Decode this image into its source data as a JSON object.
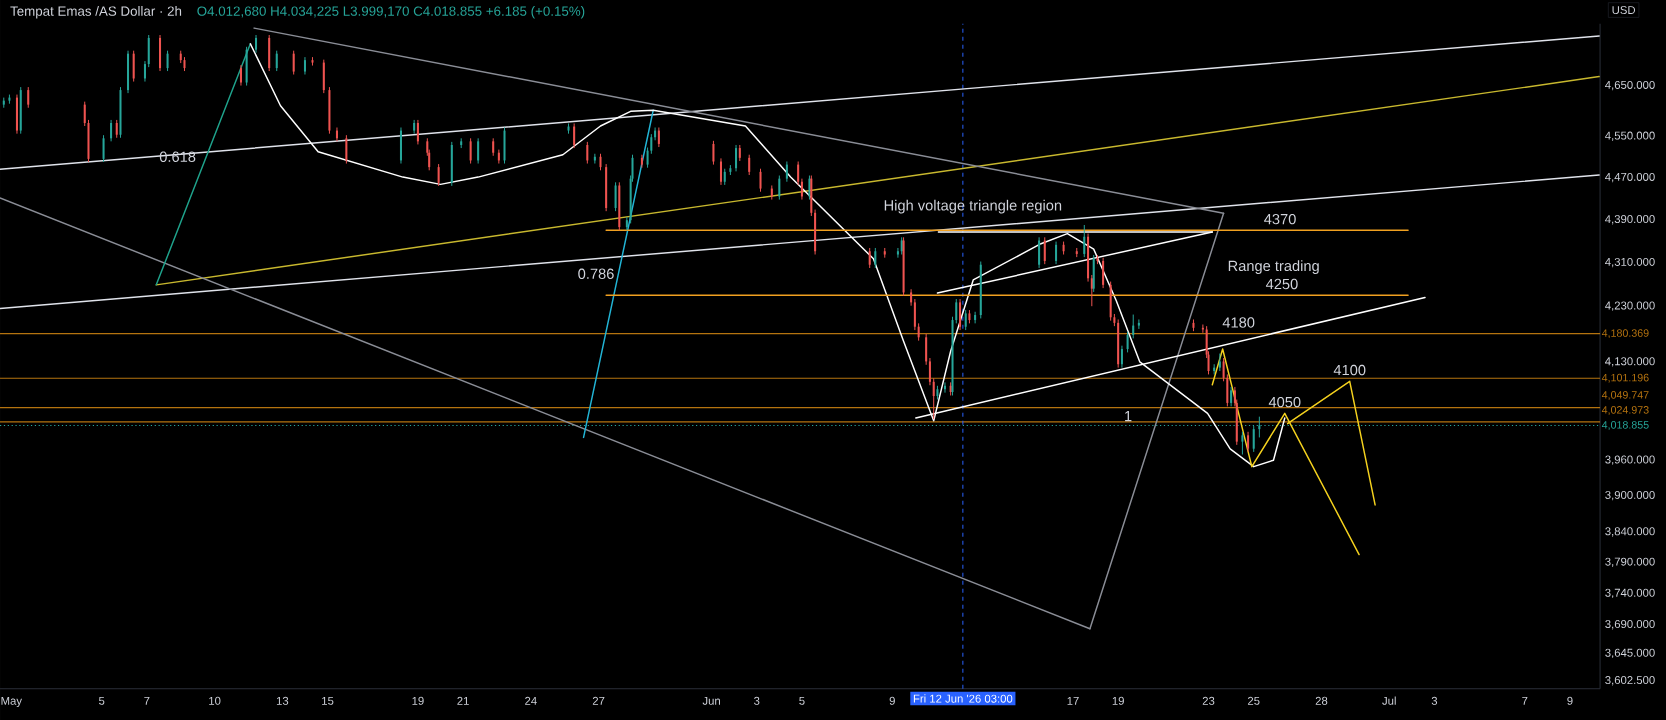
{
  "chart_data": {
    "type": "candlestick",
    "title": "Tempat Emas /AS Dollar · 2h",
    "subtitle": "O4.012,680 H4.034,225 L3.999,170 C4.018.855 +6.185 (+0.15%)",
    "log": "y",
    "xlim": [
      "2026-04-30T12:00",
      "2026-07-10T08:00"
    ],
    "ylim": [
      3590,
      4775
    ],
    "xticks": [
      {
        "value": "2026-05-01",
        "label": "May"
      },
      {
        "value": "2026-05-05",
        "label": "5"
      },
      {
        "value": "2026-05-07",
        "label": "7"
      },
      {
        "value": "2026-05-10",
        "label": "10"
      },
      {
        "value": "2026-05-13",
        "label": "13"
      },
      {
        "value": "2026-05-15",
        "label": "15"
      },
      {
        "value": "2026-05-19",
        "label": "19"
      },
      {
        "value": "2026-05-21",
        "label": "21"
      },
      {
        "value": "2026-05-24",
        "label": "24"
      },
      {
        "value": "2026-05-27",
        "label": "27"
      },
      {
        "value": "2026-06-01",
        "label": "Jun"
      },
      {
        "value": "2026-06-03",
        "label": "3"
      },
      {
        "value": "2026-06-05",
        "label": "5"
      },
      {
        "value": "2026-06-09",
        "label": "9"
      },
      {
        "value": "2026-06-17",
        "label": "17"
      },
      {
        "value": "2026-06-19",
        "label": "19"
      },
      {
        "value": "2026-06-23",
        "label": "23"
      },
      {
        "value": "2026-06-25",
        "label": "25"
      },
      {
        "value": "2026-06-28",
        "label": "28"
      },
      {
        "value": "2026-07-01",
        "label": "Jul"
      },
      {
        "value": "2026-07-03",
        "label": "3"
      },
      {
        "value": "2026-07-07",
        "label": "7"
      },
      {
        "value": "2026-07-09",
        "label": "9"
      }
    ],
    "yticks": [
      {
        "value": 4650,
        "label": "4,650.000"
      },
      {
        "value": 4550,
        "label": "4,550.000"
      },
      {
        "value": 4470,
        "label": "4,470.000"
      },
      {
        "value": 4390,
        "label": "4,390.000"
      },
      {
        "value": 4310,
        "label": "4,310.000"
      },
      {
        "value": 4230,
        "label": "4,230.000"
      },
      {
        "value": 4130,
        "label": "4,130.000"
      },
      {
        "value": 3960,
        "label": "3,960.000"
      },
      {
        "value": 3900,
        "label": "3,900.000"
      },
      {
        "value": 3840,
        "label": "3,840.000"
      },
      {
        "value": 3790,
        "label": "3,790.000"
      },
      {
        "value": 3740,
        "label": "3,740.000"
      },
      {
        "value": 3690,
        "label": "3,690.000"
      },
      {
        "value": 3645,
        "label": "3,645.000"
      },
      {
        "value": 3602.5,
        "label": "3,602.500"
      }
    ],
    "ref_lines": [
      {
        "axis": "y",
        "value": 4180.369,
        "label": "4,180.369",
        "color": "#b5730f"
      },
      {
        "axis": "y",
        "value": 4101.196,
        "label": "4,101.196",
        "color": "#b5730f"
      },
      {
        "axis": "y",
        "value": 4049.747,
        "label": "4,049.747",
        "color": "#b5730f"
      },
      {
        "axis": "y",
        "value": 4024.973,
        "label": "4,024.973",
        "color": "#b5730f"
      },
      {
        "axis": "y",
        "value": 4018.855,
        "label": "4,018.855",
        "color": "#26a69a",
        "line_style": "dotted"
      },
      {
        "axis": "x",
        "value": "2026-06-12T03:00",
        "label": "Fri 12 Jun '26  03:00",
        "color": "#2962ff",
        "line_style": "dashed"
      }
    ],
    "annotations": [
      {
        "text": "4370",
        "x": "2026-06-26T04:00",
        "y": 4370
      },
      {
        "text": "4250",
        "x": "2026-06-26T06:00",
        "y": 4250
      },
      {
        "text": "4180",
        "x": "2026-06-24T08:00",
        "y": 4180.369
      },
      {
        "text": "4100",
        "x": "2026-06-29T06:00",
        "y": 4096
      },
      {
        "text": "4050",
        "x": "2026-06-26T09:00",
        "y": 4040
      },
      "High voltage triangle region",
      "Range trading",
      "0.618",
      "0.786",
      "1",
      "USD"
    ],
    "series": [
      {
        "type": "line",
        "color": "#e0e3eb",
        "x": [
          "2026-04-30T12:00",
          "2026-07-10T07:00"
        ],
        "values": [
          4486,
          4750
        ]
      },
      {
        "type": "line",
        "color": "#e0e3eb",
        "x": [
          "2026-04-30T12:00",
          "2026-07-10T07:00"
        ],
        "values": [
          4226,
          4475
        ]
      },
      {
        "type": "line",
        "color": "#c8b82e",
        "x": [
          "2026-05-07T10:00",
          "2026-07-10T07:00"
        ],
        "values": [
          4269,
          4668
        ]
      },
      {
        "type": "line",
        "color": "#8a8d96",
        "x": [
          "2026-05-11T18:00",
          "2026-06-23T16:00"
        ],
        "values": [
          4766,
          4402
        ]
      },
      {
        "type": "line",
        "color": "#8a8d96",
        "x": [
          "2026-04-30T12:00",
          "2026-06-17T18:00"
        ],
        "values": [
          4431,
          3684
        ]
      },
      {
        "type": "line",
        "color": "#8a8d96",
        "x": [
          "2026-06-17T18:00",
          "2026-06-23T16:00"
        ],
        "values": [
          3684,
          4402
        ]
      },
      {
        "type": "line",
        "color": "#1fa38c",
        "x": [
          "2026-05-07T10:00",
          "2026-05-11T14:00"
        ],
        "values": [
          4269,
          4734
        ]
      },
      {
        "type": "line",
        "color": "#22b5d6",
        "x": [
          "2026-05-26T08:00",
          "2026-05-29T10:00"
        ],
        "values": [
          3999,
          4601
        ]
      },
      {
        "type": "line",
        "color": "#ffffff",
        "x": [
          "2026-05-11T14:00",
          "2026-05-12T22:00",
          "2026-05-14T14:00",
          "2026-05-18T08:00",
          "2026-05-20T00:00",
          "2026-05-21T16:00",
          "2026-05-25T10:00",
          "2026-05-27T02:00",
          "2026-05-28T10:00",
          "2026-05-29T10:00",
          "2026-06-02T12:00",
          "2026-06-04T12:00",
          "2026-06-08T04:00",
          "2026-06-09T12:00",
          "2026-06-10T20:00",
          "2026-06-11T14:00",
          "2026-06-12T14:00",
          "2026-06-15T14:00",
          "2026-06-16T18:00",
          "2026-06-17T22:00",
          "2026-06-18T22:00",
          "2026-06-19T23:00",
          "2026-06-22T23:00",
          "2026-06-23T23:00",
          "2026-06-25T00:00",
          "2026-06-25T21:00",
          "2026-06-26T09:00"
        ],
        "values": [
          4734,
          4610,
          4520,
          4471,
          4457,
          4471,
          4514,
          4570,
          4599,
          4601,
          4570,
          4471,
          4317,
          4167,
          4027,
          4149,
          4278,
          4345,
          4364,
          4335,
          4240,
          4130,
          4040,
          3979,
          3949,
          3960,
          4032
        ]
      },
      {
        "type": "line",
        "color": "#ffffff",
        "x": [
          "2026-06-10T01:00",
          "2026-07-02T14:00"
        ],
        "values": [
          4032,
          4246
        ]
      },
      {
        "type": "line",
        "color": "#ffffff",
        "x": [
          "2026-06-11T00:00",
          "2026-06-23T04:00"
        ],
        "values": [
          4254,
          4367
        ]
      },
      {
        "type": "line",
        "color": "#ffffff",
        "x": [
          "2026-06-11T01:00",
          "2026-06-23T04:00"
        ],
        "values": [
          4367,
          4367
        ]
      },
      {
        "type": "line",
        "color": "#f0a020",
        "x": [
          "2026-05-27T08:00",
          "2026-07-01T20:00"
        ],
        "values": [
          4370,
          4370
        ]
      },
      {
        "type": "line",
        "color": "#f0a020",
        "x": [
          "2026-05-27T08:00",
          "2026-07-01T20:00"
        ],
        "values": [
          4250,
          4250
        ]
      },
      {
        "type": "line",
        "color": "#f5d21e",
        "x": [
          "2026-06-23T04:00",
          "2026-06-23T15:00",
          "2026-06-24T22:00",
          "2026-06-26T09:00",
          "2026-06-29T16:00"
        ],
        "values": [
          4090,
          4153,
          3949,
          4040,
          3803
        ]
      },
      {
        "type": "line",
        "color": "#f5d21e",
        "x": [
          "2026-06-26T12:00",
          "2026-06-29T06:00",
          "2026-06-30T09:00"
        ],
        "values": [
          4022,
          4096,
          3885
        ]
      },
      {
        "type": "candlestick",
        "x": [
          "2026-04-30T16:00",
          "2026-04-30T22:00",
          "2026-05-01T06:00",
          "2026-05-01T10:00",
          "2026-05-01T18:00",
          "2026-05-04T06:00",
          "2026-05-04T10:00",
          "2026-05-05T02:00",
          "2026-05-05T10:00",
          "2026-05-05T16:00",
          "2026-05-05T20:00",
          "2026-05-06T04:00",
          "2026-05-06T10:00",
          "2026-05-06T22:00",
          "2026-05-07T02:00",
          "2026-05-07T14:00",
          "2026-05-07T22:00",
          "2026-05-08T12:00",
          "2026-05-08T16:00",
          "2026-05-11T04:00",
          "2026-05-11T10:00",
          "2026-05-11T20:00",
          "2026-05-12T10:00",
          "2026-05-12T18:00",
          "2026-05-13T12:00",
          "2026-05-14T00:00",
          "2026-05-14T08:00",
          "2026-05-14T20:00",
          "2026-05-15T02:00",
          "2026-05-15T10:00",
          "2026-05-15T20:00",
          "2026-05-18T06:00",
          "2026-05-18T20:00",
          "2026-05-19T00:00",
          "2026-05-19T10:00",
          "2026-05-19T12:00",
          "2026-05-19T22:00",
          "2026-05-20T12:00",
          "2026-05-20T22:00",
          "2026-05-21T08:00",
          "2026-05-21T16:00",
          "2026-05-22T08:00",
          "2026-05-22T14:00",
          "2026-05-22T20:00",
          "2026-05-25T16:00",
          "2026-05-25T22:00",
          "2026-05-26T12:00",
          "2026-05-26T20:00",
          "2026-05-27T02:00",
          "2026-05-27T08:00",
          "2026-05-27T18:00",
          "2026-05-27T22:00",
          "2026-05-28T06:00",
          "2026-05-28T10:00",
          "2026-05-28T12:00",
          "2026-05-28T22:00",
          "2026-05-29T04:00",
          "2026-05-29T08:00",
          "2026-05-29T12:00",
          "2026-05-29T16:00",
          "2026-06-01T02:00",
          "2026-06-01T10:00",
          "2026-06-01T14:00",
          "2026-06-01T20:00",
          "2026-06-02T02:00",
          "2026-06-02T06:00",
          "2026-06-02T16:00",
          "2026-06-03T04:00",
          "2026-06-03T16:00",
          "2026-06-04T00:00",
          "2026-06-04T08:00",
          "2026-06-04T20:00",
          "2026-06-05T00:00",
          "2026-06-05T08:00",
          "2026-06-05T10:00",
          "2026-06-05T14:00",
          "2026-06-08T00:00",
          "2026-06-08T06:00",
          "2026-06-08T16:00",
          "2026-06-09T06:00",
          "2026-06-09T10:00",
          "2026-06-09T12:00",
          "2026-06-09T20:00",
          "2026-06-10T00:00",
          "2026-06-10T04:00",
          "2026-06-10T12:00",
          "2026-06-10T16:00",
          "2026-06-10T20:00",
          "2026-06-11T00:00",
          "2026-06-11T08:00",
          "2026-06-11T14:00",
          "2026-06-11T16:00",
          "2026-06-11T20:00",
          "2026-06-12T00:00",
          "2026-06-12T06:00",
          "2026-06-12T10:00",
          "2026-06-12T16:00",
          "2026-06-12T22:00",
          "2026-06-15T12:00",
          "2026-06-15T18:00",
          "2026-06-16T06:00",
          "2026-06-16T14:00",
          "2026-06-17T04:00",
          "2026-06-17T12:00",
          "2026-06-17T16:00",
          "2026-06-17T20:00",
          "2026-06-17T22:00",
          "2026-06-18T02:00",
          "2026-06-18T08:00",
          "2026-06-18T16:00",
          "2026-06-18T20:00",
          "2026-06-19T00:00",
          "2026-06-19T04:00",
          "2026-06-19T10:00",
          "2026-06-19T16:00",
          "2026-06-19T22:00",
          "2026-06-22T08:00",
          "2026-06-22T18:00",
          "2026-06-22T22:00",
          "2026-06-23T00:00",
          "2026-06-23T06:00",
          "2026-06-23T12:00",
          "2026-06-23T16:00",
          "2026-06-23T20:00",
          "2026-06-24T00:00",
          "2026-06-24T04:00",
          "2026-06-24T06:00",
          "2026-06-24T12:00",
          "2026-06-24T18:00",
          "2026-06-25T00:00",
          "2026-06-25T06:00"
        ],
        "ohlc": [
          [
            4612,
            4626,
            4606,
            4620
          ],
          [
            4620,
            4632,
            4614,
            4626
          ],
          [
            4626,
            4632,
            4555,
            4561
          ],
          [
            4561,
            4647,
            4555,
            4641
          ],
          [
            4641,
            4647,
            4606,
            4612
          ],
          [
            4612,
            4618,
            4570,
            4576
          ],
          [
            4576,
            4582,
            4500,
            4506
          ],
          [
            4506,
            4552,
            4500,
            4546
          ],
          [
            4546,
            4582,
            4540,
            4576
          ],
          [
            4576,
            4582,
            4547,
            4553
          ],
          [
            4553,
            4647,
            4547,
            4641
          ],
          [
            4641,
            4720,
            4635,
            4714
          ],
          [
            4714,
            4720,
            4658,
            4664
          ],
          [
            4664,
            4699,
            4658,
            4693
          ],
          [
            4693,
            4752,
            4687,
            4746
          ],
          [
            4746,
            4752,
            4679,
            4685
          ],
          [
            4685,
            4720,
            4679,
            4714
          ],
          [
            4714,
            4720,
            4695,
            4701
          ],
          [
            4701,
            4707,
            4679,
            4685
          ],
          [
            4685,
            4691,
            4650,
            4656
          ],
          [
            4656,
            4728,
            4650,
            4722
          ],
          [
            4722,
            4752,
            4716,
            4746
          ],
          [
            4746,
            4752,
            4679,
            4685
          ],
          [
            4685,
            4720,
            4679,
            4714
          ],
          [
            4714,
            4720,
            4672,
            4678
          ],
          [
            4678,
            4707,
            4672,
            4701
          ],
          [
            4701,
            4707,
            4690,
            4696
          ],
          [
            4696,
            4702,
            4635,
            4641
          ],
          [
            4641,
            4647,
            4555,
            4561
          ],
          [
            4561,
            4567,
            4540,
            4546
          ],
          [
            4546,
            4552,
            4497,
            4503
          ],
          [
            4503,
            4567,
            4497,
            4561
          ],
          [
            4561,
            4582,
            4555,
            4576
          ],
          [
            4576,
            4582,
            4534,
            4540
          ],
          [
            4540,
            4546,
            4512,
            4518
          ],
          [
            4518,
            4524,
            4484,
            4490
          ],
          [
            4490,
            4496,
            4454,
            4460
          ],
          [
            4460,
            4539,
            4454,
            4533
          ],
          [
            4533,
            4546,
            4527,
            4540
          ],
          [
            4540,
            4546,
            4497,
            4503
          ],
          [
            4503,
            4546,
            4497,
            4540
          ],
          [
            4540,
            4546,
            4512,
            4518
          ],
          [
            4518,
            4524,
            4497,
            4503
          ],
          [
            4503,
            4567,
            4497,
            4561
          ],
          [
            4561,
            4575,
            4555,
            4569
          ],
          [
            4569,
            4575,
            4527,
            4533
          ],
          [
            4533,
            4539,
            4497,
            4503
          ],
          [
            4503,
            4516,
            4497,
            4510
          ],
          [
            4510,
            4516,
            4484,
            4490
          ],
          [
            4490,
            4496,
            4406,
            4412
          ],
          [
            4412,
            4461,
            4406,
            4455
          ],
          [
            4455,
            4461,
            4370,
            4376
          ],
          [
            4376,
            4395,
            4370,
            4389
          ],
          [
            4389,
            4474,
            4383,
            4468
          ],
          [
            4468,
            4514,
            4462,
            4508
          ],
          [
            4508,
            4514,
            4489,
            4495
          ],
          [
            4495,
            4528,
            4489,
            4522
          ],
          [
            4522,
            4554,
            4516,
            4548
          ],
          [
            4548,
            4567,
            4542,
            4561
          ],
          [
            4561,
            4567,
            4529,
            4535
          ],
          [
            4535,
            4541,
            4495,
            4501
          ],
          [
            4501,
            4507,
            4456,
            4462
          ],
          [
            4462,
            4487,
            4456,
            4481
          ],
          [
            4481,
            4494,
            4475,
            4488
          ],
          [
            4488,
            4533,
            4482,
            4527
          ],
          [
            4527,
            4533,
            4502,
            4508
          ],
          [
            4508,
            4514,
            4475,
            4481
          ],
          [
            4481,
            4487,
            4443,
            4449
          ],
          [
            4449,
            4455,
            4428,
            4434
          ],
          [
            4434,
            4474,
            4428,
            4468
          ],
          [
            4468,
            4501,
            4462,
            4495
          ],
          [
            4495,
            4501,
            4456,
            4462
          ],
          [
            4462,
            4468,
            4428,
            4434
          ],
          [
            4434,
            4474,
            4428,
            4468
          ],
          [
            4468,
            4474,
            4397,
            4403
          ],
          [
            4403,
            4409,
            4325,
            4331
          ],
          [
            4331,
            4337,
            4300,
            4306
          ],
          [
            4306,
            4337,
            4300,
            4331
          ],
          [
            4331,
            4337,
            4319,
            4325
          ],
          [
            4325,
            4337,
            4319,
            4331
          ],
          [
            4331,
            4357,
            4325,
            4351
          ],
          [
            4351,
            4357,
            4249,
            4255
          ],
          [
            4255,
            4261,
            4231,
            4237
          ],
          [
            4237,
            4243,
            4187,
            4193
          ],
          [
            4193,
            4199,
            4168,
            4174
          ],
          [
            4174,
            4180,
            4125,
            4131
          ],
          [
            4131,
            4137,
            4089,
            4095
          ],
          [
            4095,
            4101,
            4030,
            4070
          ],
          [
            4070,
            4088,
            4064,
            4082
          ],
          [
            4082,
            4094,
            4076,
            4088
          ],
          [
            4088,
            4094,
            4071,
            4077
          ],
          [
            4077,
            4211,
            4071,
            4205
          ],
          [
            4205,
            4243,
            4199,
            4237
          ],
          [
            4237,
            4243,
            4187,
            4193
          ],
          [
            4193,
            4223,
            4187,
            4217
          ],
          [
            4217,
            4223,
            4199,
            4205
          ],
          [
            4205,
            4220,
            4199,
            4214
          ],
          [
            4214,
            4312,
            4208,
            4306
          ],
          [
            4306,
            4357,
            4300,
            4351
          ],
          [
            4351,
            4357,
            4307,
            4313
          ],
          [
            4313,
            4349,
            4307,
            4343
          ],
          [
            4343,
            4349,
            4325,
            4331
          ],
          [
            4331,
            4337,
            4320,
            4326
          ],
          [
            4326,
            4380,
            4320,
            4358
          ],
          [
            4358,
            4364,
            4275,
            4281
          ],
          [
            4281,
            4287,
            4230,
            4262
          ],
          [
            4262,
            4324,
            4256,
            4318
          ],
          [
            4318,
            4324,
            4307,
            4313
          ],
          [
            4313,
            4319,
            4263,
            4269
          ],
          [
            4269,
            4275,
            4204,
            4210
          ],
          [
            4210,
            4216,
            4194,
            4200
          ],
          [
            4200,
            4206,
            4120,
            4126
          ],
          [
            4126,
            4159,
            4120,
            4153
          ],
          [
            4153,
            4184,
            4147,
            4178
          ],
          [
            4178,
            4215,
            4172,
            4195
          ],
          [
            4195,
            4206,
            4189,
            4200
          ],
          [
            4200,
            4206,
            4185,
            4191
          ],
          [
            4191,
            4197,
            4182,
            4188
          ],
          [
            4188,
            4194,
            4137,
            4143
          ],
          [
            4143,
            4149,
            4108,
            4114
          ],
          [
            4114,
            4126,
            4108,
            4120
          ],
          [
            4120,
            4145,
            4114,
            4131
          ],
          [
            4131,
            4137,
            4096,
            4102
          ],
          [
            4102,
            4108,
            4052,
            4058
          ],
          [
            4058,
            4086,
            4052,
            4080
          ],
          [
            4080,
            4086,
            4052,
            4058
          ],
          [
            4058,
            4064,
            3986,
            3992
          ],
          [
            3992,
            4008,
            3970,
            4002
          ],
          [
            4002,
            4008,
            3974,
            3980
          ],
          [
            3980,
            4018,
            3974,
            4012.68
          ],
          [
            4012.68,
            4034.225,
            3999.17,
            4018.855
          ]
        ],
        "colors": [
          "#26a69a",
          "#26a69a",
          "#ef5350",
          "#26a69a",
          "#ef5350",
          "#ef5350",
          "#ef5350",
          "#26a69a",
          "#26a69a",
          "#ef5350",
          "#26a69a",
          "#26a69a",
          "#ef5350",
          "#26a69a",
          "#26a69a",
          "#ef5350",
          "#26a69a",
          "#ef5350",
          "#ef5350",
          "#ef5350",
          "#26a69a",
          "#26a69a",
          "#ef5350",
          "#26a69a",
          "#ef5350",
          "#26a69a",
          "#ef5350",
          "#ef5350",
          "#ef5350",
          "#ef5350",
          "#ef5350",
          "#26a69a",
          "#26a69a",
          "#ef5350",
          "#ef5350",
          "#ef5350",
          "#ef5350",
          "#26a69a",
          "#26a69a",
          "#ef5350",
          "#26a69a",
          "#ef5350",
          "#ef5350",
          "#26a69a",
          "#26a69a",
          "#ef5350",
          "#ef5350",
          "#26a69a",
          "#ef5350",
          "#ef5350",
          "#26a69a",
          "#ef5350",
          "#26a69a",
          "#26a69a",
          "#26a69a",
          "#ef5350",
          "#26a69a",
          "#26a69a",
          "#26a69a",
          "#ef5350",
          "#ef5350",
          "#ef5350",
          "#26a69a",
          "#26a69a",
          "#26a69a",
          "#ef5350",
          "#ef5350",
          "#ef5350",
          "#ef5350",
          "#26a69a",
          "#26a69a",
          "#ef5350",
          "#ef5350",
          "#26a69a",
          "#ef5350",
          "#ef5350",
          "#ef5350",
          "#26a69a",
          "#ef5350",
          "#26a69a",
          "#26a69a",
          "#ef5350",
          "#ef5350",
          "#ef5350",
          "#ef5350",
          "#ef5350",
          "#ef5350",
          "#ef5350",
          "#26a69a",
          "#26a69a",
          "#ef5350",
          "#26a69a",
          "#26a69a",
          "#ef5350",
          "#26a69a",
          "#ef5350",
          "#26a69a",
          "#26a69a",
          "#26a69a",
          "#ef5350",
          "#26a69a",
          "#ef5350",
          "#ef5350",
          "#26a69a",
          "#ef5350",
          "#ef5350",
          "#26a69a",
          "#ef5350",
          "#ef5350",
          "#ef5350",
          "#ef5350",
          "#ef5350",
          "#26a69a",
          "#26a69a",
          "#26a69a",
          "#26a69a",
          "#ef5350",
          "#ef5350",
          "#ef5350",
          "#ef5350",
          "#26a69a",
          "#26a69a",
          "#ef5350",
          "#ef5350",
          "#26a69a",
          "#ef5350",
          "#ef5350",
          "#26a69a",
          "#ef5350",
          "#26a69a",
          "#26a69a"
        ]
      }
    ]
  }
}
